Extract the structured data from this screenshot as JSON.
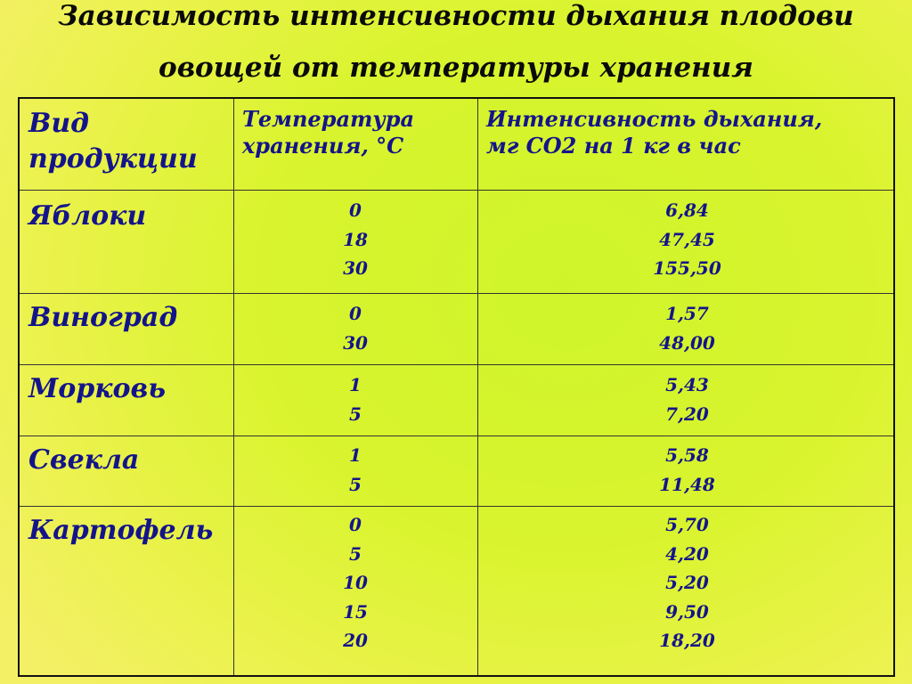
{
  "title": {
    "line1": "Зависимость интенсивности дыхания плодови",
    "line2": "овощей от температуры хранения"
  },
  "table": {
    "headers": {
      "product_line1": "Вид",
      "product_line2": "продукции",
      "temperature_line1": "Температура",
      "temperature_line2": "хранения, °С",
      "intensity_line1": "Интенсивность дыхания,",
      "intensity_line2": "мг СО2 на 1 кг в час"
    },
    "rows": [
      {
        "product": "Яблоки",
        "temperatures": [
          "0",
          "18",
          "30"
        ],
        "intensities": [
          "6,84",
          "47,45",
          "155,50"
        ]
      },
      {
        "product": "Виноград",
        "temperatures": [
          "0",
          "30"
        ],
        "intensities": [
          "1,57",
          "48,00"
        ]
      },
      {
        "product": "Морковь",
        "temperatures": [
          "1",
          "5"
        ],
        "intensities": [
          "5,43",
          "7,20"
        ]
      },
      {
        "product": "Свекла",
        "temperatures": [
          "1",
          "5"
        ],
        "intensities": [
          "5,58",
          "11,48"
        ]
      },
      {
        "product": "Картофель",
        "temperatures": [
          "0",
          "5",
          "10",
          "15",
          "20"
        ],
        "intensities": [
          "5,70",
          "4,20",
          "5,20",
          "9,50",
          "18,20"
        ]
      }
    ]
  },
  "colors": {
    "table_text": "#14148a",
    "title_text": "#0a0a0a",
    "background_center": "#cff52a",
    "background_edge": "#f4f066"
  }
}
